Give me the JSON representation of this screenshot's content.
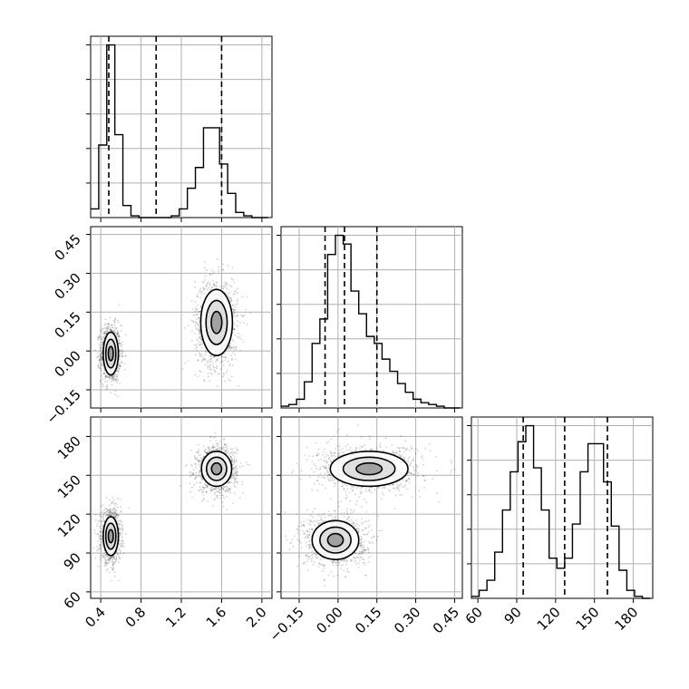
{
  "chart_data": {
    "type": "corner",
    "title": "",
    "parameters": [
      {
        "range": [
          0.3,
          2.1
        ],
        "ticks": [
          0.4,
          0.8,
          1.2,
          1.6,
          2.0
        ],
        "tick_labels": [
          "0.4",
          "0.8",
          "1.2",
          "1.6",
          "2.0"
        ],
        "quantiles": [
          0.48,
          0.95,
          1.6
        ]
      },
      {
        "range": [
          -0.22,
          0.48
        ],
        "ticks": [
          -0.15,
          0.0,
          0.15,
          0.3,
          0.45
        ],
        "tick_labels": [
          "−0.15",
          "0.00",
          "0.15",
          "0.30",
          "0.45"
        ],
        "quantiles": [
          -0.05,
          0.025,
          0.15
        ]
      },
      {
        "range": [
          55,
          195
        ],
        "ticks": [
          60,
          90,
          120,
          150,
          180
        ],
        "tick_labels": [
          "60",
          "90",
          "120",
          "150",
          "180"
        ],
        "quantiles": [
          95,
          127,
          160
        ]
      }
    ],
    "histograms": [
      {
        "parameter": 0,
        "bin_edges": [
          0.3,
          0.38,
          0.46,
          0.54,
          0.62,
          0.7,
          0.78,
          0.86,
          0.94,
          1.02,
          1.1,
          1.18,
          1.26,
          1.34,
          1.42,
          1.5,
          1.58,
          1.66,
          1.74,
          1.82,
          1.9,
          1.98,
          2.06
        ],
        "counts": [
          0.05,
          0.42,
          1.0,
          0.48,
          0.07,
          0.01,
          0.0,
          0.0,
          0.0,
          0.0,
          0.01,
          0.05,
          0.17,
          0.29,
          0.52,
          0.52,
          0.31,
          0.14,
          0.03,
          0.01,
          0.0,
          0.0
        ]
      },
      {
        "parameter": 1,
        "bin_edges": [
          -0.22,
          -0.19,
          -0.16,
          -0.13,
          -0.1,
          -0.07,
          -0.04,
          -0.01,
          0.02,
          0.05,
          0.08,
          0.11,
          0.14,
          0.17,
          0.2,
          0.23,
          0.26,
          0.29,
          0.32,
          0.35,
          0.38,
          0.41,
          0.44,
          0.47
        ],
        "counts": [
          0.01,
          0.02,
          0.05,
          0.15,
          0.37,
          0.51,
          0.88,
          0.99,
          0.94,
          0.67,
          0.54,
          0.41,
          0.37,
          0.28,
          0.21,
          0.14,
          0.09,
          0.05,
          0.03,
          0.02,
          0.01,
          0.0,
          0.0
        ]
      },
      {
        "parameter": 2,
        "bin_edges": [
          55,
          61,
          67,
          73,
          79,
          85,
          91,
          97,
          103,
          109,
          115,
          121,
          127,
          133,
          139,
          145,
          151,
          157,
          163,
          169,
          175,
          181,
          187,
          193
        ],
        "counts": [
          0.01,
          0.04,
          0.09,
          0.23,
          0.44,
          0.63,
          0.78,
          0.86,
          0.65,
          0.44,
          0.2,
          0.15,
          0.2,
          0.37,
          0.63,
          0.77,
          0.77,
          0.58,
          0.36,
          0.14,
          0.04,
          0.01,
          0.0
        ]
      }
    ],
    "pairs": [
      {
        "x_param": 0,
        "y_param": 1,
        "clusters": [
          {
            "center": [
              0.5,
              -0.01
            ],
            "sd": [
              0.05,
              0.055
            ],
            "weight": 0.5
          },
          {
            "center": [
              1.55,
              0.11
            ],
            "sd": [
              0.105,
              0.085
            ],
            "weight": 0.5
          }
        ]
      },
      {
        "x_param": 0,
        "y_param": 2,
        "clusters": [
          {
            "center": [
              0.5,
              103
            ],
            "sd": [
              0.05,
              10
            ],
            "weight": 0.5
          },
          {
            "center": [
              1.55,
              155
            ],
            "sd": [
              0.1,
              9
            ],
            "weight": 0.5
          }
        ]
      },
      {
        "x_param": 1,
        "y_param": 2,
        "clusters": [
          {
            "center": [
              -0.01,
              100
            ],
            "sd": [
              0.06,
              10
            ],
            "weight": 0.5
          },
          {
            "center": [
              0.12,
              155
            ],
            "sd": [
              0.1,
              9
            ],
            "weight": 0.5
          }
        ]
      }
    ],
    "contour_levels_sigma": [
      0.5,
      1.0,
      1.5
    ],
    "grid": true,
    "legend": "none"
  }
}
